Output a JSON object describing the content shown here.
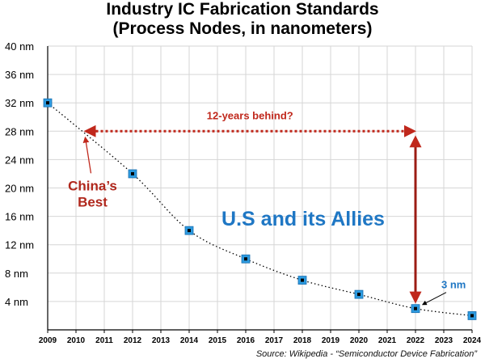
{
  "chart_data": {
    "type": "scatter",
    "title_lines": [
      "Industry IC Fabrication Standards",
      "(Process Nodes, in nanometers)"
    ],
    "x_ticks": [
      2009,
      2010,
      2011,
      2012,
      2013,
      2014,
      2015,
      2016,
      2017,
      2018,
      2019,
      2020,
      2021,
      2022,
      2023,
      2024
    ],
    "y_ticks": [
      {
        "value": 4,
        "label": "4 nm"
      },
      {
        "value": 8,
        "label": "8 nm"
      },
      {
        "value": 12,
        "label": "12 nm"
      },
      {
        "value": 16,
        "label": "16 nm"
      },
      {
        "value": 20,
        "label": "20 nm"
      },
      {
        "value": 24,
        "label": "24 nm"
      },
      {
        "value": 28,
        "label": "28 nm"
      },
      {
        "value": 32,
        "label": "32 nm"
      },
      {
        "value": 36,
        "label": "36 nm"
      },
      {
        "value": 40,
        "label": "40 nm"
      }
    ],
    "xlim": [
      2009,
      2024
    ],
    "ylim": [
      0,
      40
    ],
    "grid": true,
    "series": [
      {
        "name": "U.S and its Allies",
        "x": [
          2009,
          2012,
          2014,
          2016,
          2018,
          2020,
          2022,
          2024
        ],
        "y": [
          32,
          22,
          14,
          10,
          7,
          5,
          3,
          2
        ]
      }
    ],
    "annotations": {
      "gap_label": "12-years behind?",
      "gap_from": {
        "x": 2010.3,
        "y": 28
      },
      "gap_to": {
        "x": 2022,
        "y": 28
      },
      "vertical_arrow": {
        "x": 2022,
        "y_from": 28,
        "y_to": 3
      },
      "china_label_line1": "China’s",
      "china_label_line2": "Best",
      "china_point": {
        "x": 2010.3,
        "y": 28
      },
      "allies_label": "U.S and its Allies",
      "node_label": "3 nm"
    },
    "source": "Source: Wikipedia - “Semiconductor Device Fabrication”"
  },
  "colors": {
    "marker_fill": "#2d9be0",
    "marker_center": "#000000",
    "red": "#c0281c",
    "blue": "#1f77c4",
    "grid": "#d6d6d6"
  }
}
